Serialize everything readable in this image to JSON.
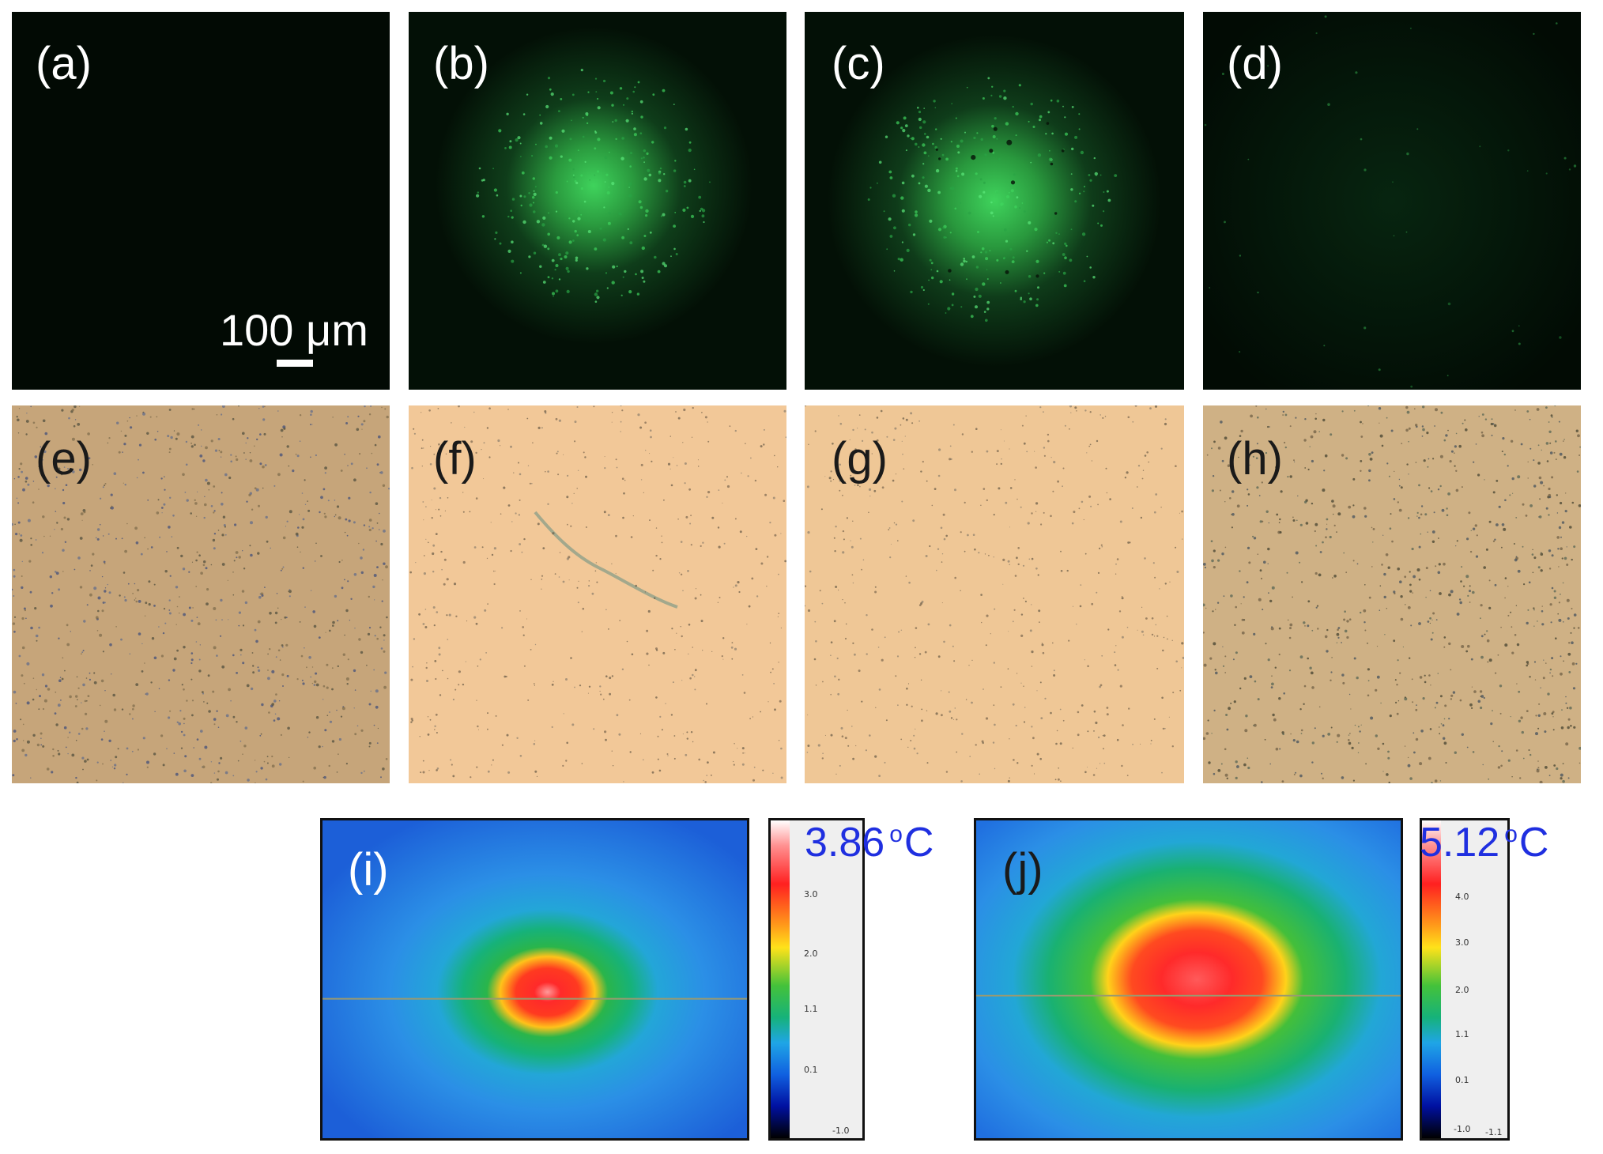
{
  "panels": {
    "a": {
      "label": "(a)",
      "type": "fluorescence"
    },
    "b": {
      "label": "(b)",
      "type": "fluorescence"
    },
    "c": {
      "label": "(c)",
      "type": "fluorescence"
    },
    "d": {
      "label": "(d)",
      "type": "fluorescence"
    },
    "e": {
      "label": "(e)",
      "type": "brightfield"
    },
    "f": {
      "label": "(f)",
      "type": "brightfield"
    },
    "g": {
      "label": "(g)",
      "type": "brightfield"
    },
    "h": {
      "label": "(h)",
      "type": "brightfield"
    },
    "i": {
      "label": "(i)",
      "type": "thermal"
    },
    "j": {
      "label": "(j)",
      "type": "thermal"
    }
  },
  "scalebar": {
    "text": "100 μm"
  },
  "thermal_i": {
    "max_value": "3.86",
    "unit_o": "o",
    "unit_c": "C",
    "ticks": [
      "3.0",
      "2.0",
      "1.1",
      "0.1",
      "-1.0"
    ]
  },
  "thermal_j": {
    "max_value": "5.12",
    "unit_o": "o",
    "unit_c": "C",
    "ticks": [
      "4.0",
      "3.0",
      "2.0",
      "1.1",
      "0.1",
      "-1.0",
      "-1.1"
    ]
  },
  "colors": {
    "fluor_bg": "#020b04",
    "fluor_glow": "#3bd25a",
    "brightfield_warm": "#f3c796",
    "brightfield_khaki": "#c8a676",
    "thermal_bg": "#1f6fe0",
    "temp_text": "#1f2fe0"
  }
}
